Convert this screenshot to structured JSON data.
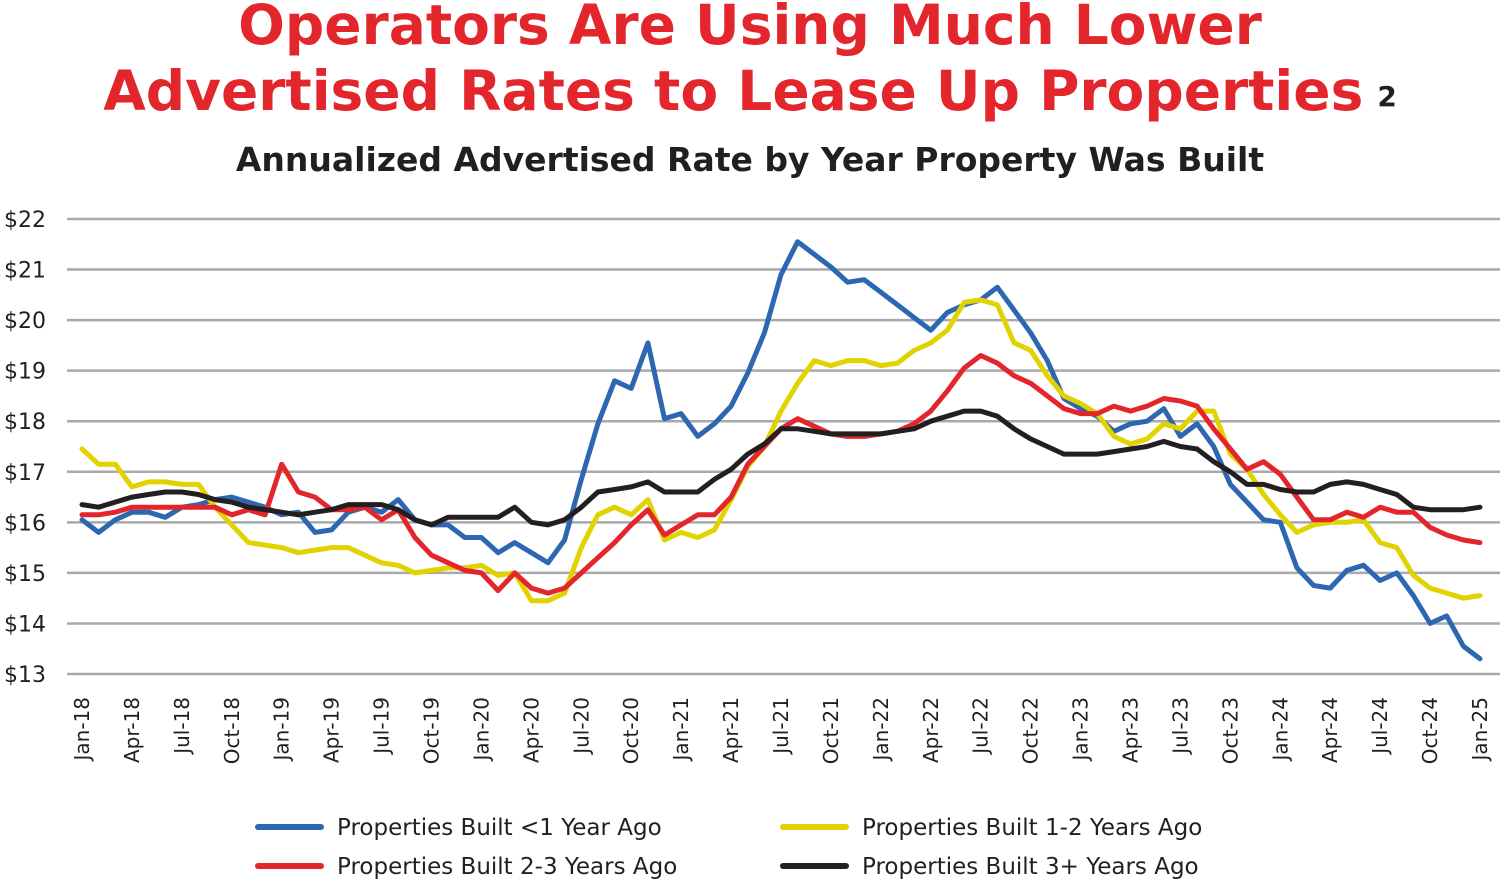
{
  "header": {
    "title_line1": "Operators Are Using Much Lower",
    "title_line2": "Advertised Rates to Lease Up Properties",
    "footnote_marker": "2",
    "subtitle": "Annualized Advertised Rate by Year Property Was Built"
  },
  "chart_data": {
    "type": "line",
    "title": "Annualized Advertised Rate by Year Property Was Built",
    "xlabel": "",
    "ylabel": "",
    "ylim": [
      13,
      22
    ],
    "y_ticks": [
      "$22",
      "$21",
      "$20",
      "$19",
      "$18",
      "$17",
      "$16",
      "$15",
      "$14",
      "$13"
    ],
    "y_tick_values": [
      22,
      21,
      20,
      19,
      18,
      17,
      16,
      15,
      14,
      13
    ],
    "grid": true,
    "legend_position": "bottom",
    "x_start": "Jan-18",
    "x_end": "Jan-25",
    "x_frequency": "monthly",
    "x_tick_labels": [
      "Jan-18",
      "Apr-18",
      "Jul-18",
      "Oct-18",
      "Jan-19",
      "Apr-19",
      "Jul-19",
      "Oct-19",
      "Jan-20",
      "Apr-20",
      "Jul-20",
      "Oct-20",
      "Jan-21",
      "Apr-21",
      "Jul-21",
      "Oct-21",
      "Jan-22",
      "Apr-22",
      "Jul-22",
      "Oct-22",
      "Jan-23",
      "Apr-23",
      "Jul-23",
      "Oct-23",
      "Jan-24",
      "Apr-24",
      "Jul-24",
      "Oct-24",
      "Jan-25"
    ],
    "series": [
      {
        "name": "Properties Built <1 Year Ago",
        "color": "#2e67b1",
        "values": [
          16.05,
          15.8,
          16.05,
          16.2,
          16.2,
          16.1,
          16.3,
          16.35,
          16.45,
          16.5,
          16.4,
          16.3,
          16.15,
          16.2,
          15.8,
          15.85,
          16.2,
          16.3,
          16.2,
          16.45,
          16.05,
          15.95,
          15.95,
          15.7,
          15.7,
          15.4,
          15.6,
          15.4,
          15.2,
          15.65,
          16.85,
          17.95,
          18.8,
          18.65,
          19.55,
          18.05,
          18.15,
          17.7,
          17.95,
          18.3,
          18.95,
          19.75,
          20.9,
          21.55,
          21.3,
          21.05,
          20.75,
          20.8,
          20.55,
          20.3,
          20.05,
          19.8,
          20.15,
          20.3,
          20.4,
          20.65,
          20.2,
          19.75,
          19.2,
          18.45,
          18.25,
          18.1,
          17.8,
          17.95,
          18.0,
          18.25,
          17.7,
          17.95,
          17.5,
          16.75,
          16.4,
          16.05,
          16.0,
          15.1,
          14.75,
          14.7,
          15.05,
          15.15,
          14.85,
          15.0,
          14.55,
          14.0,
          14.15,
          13.55,
          13.3
        ]
      },
      {
        "name": "Properties Built 1-2 Years Ago",
        "color": "#e2d200",
        "values": [
          17.45,
          17.15,
          17.15,
          16.7,
          16.8,
          16.8,
          16.75,
          16.75,
          16.3,
          15.95,
          15.6,
          15.55,
          15.5,
          15.4,
          15.45,
          15.5,
          15.5,
          15.35,
          15.2,
          15.15,
          15.0,
          15.05,
          15.1,
          15.1,
          15.15,
          14.95,
          15.0,
          14.45,
          14.45,
          14.6,
          15.5,
          16.15,
          16.3,
          16.15,
          16.45,
          15.65,
          15.8,
          15.7,
          15.85,
          16.45,
          17.1,
          17.5,
          18.2,
          18.75,
          19.2,
          19.1,
          19.2,
          19.2,
          19.1,
          19.15,
          19.4,
          19.55,
          19.8,
          20.35,
          20.4,
          20.3,
          19.55,
          19.4,
          18.9,
          18.5,
          18.35,
          18.15,
          17.7,
          17.55,
          17.65,
          17.95,
          17.85,
          18.2,
          18.2,
          17.35,
          17.05,
          16.55,
          16.15,
          15.8,
          15.95,
          16.0,
          16.0,
          16.05,
          15.6,
          15.5,
          14.95,
          14.7,
          14.6,
          14.5,
          14.55
        ]
      },
      {
        "name": "Properties Built 2-3 Years Ago",
        "color": "#e3262b",
        "values": [
          16.15,
          16.15,
          16.2,
          16.3,
          16.3,
          16.3,
          16.3,
          16.3,
          16.3,
          16.15,
          16.25,
          16.15,
          17.15,
          16.6,
          16.5,
          16.25,
          16.25,
          16.3,
          16.05,
          16.25,
          15.7,
          15.35,
          15.2,
          15.05,
          15.0,
          14.65,
          15.0,
          14.7,
          14.6,
          14.7,
          15.0,
          15.3,
          15.6,
          15.95,
          16.25,
          15.75,
          15.95,
          16.15,
          16.15,
          16.5,
          17.15,
          17.5,
          17.85,
          18.05,
          17.9,
          17.75,
          17.7,
          17.7,
          17.75,
          17.8,
          17.95,
          18.2,
          18.6,
          19.05,
          19.3,
          19.15,
          18.9,
          18.75,
          18.5,
          18.25,
          18.15,
          18.15,
          18.3,
          18.2,
          18.3,
          18.45,
          18.4,
          18.3,
          17.85,
          17.45,
          17.05,
          17.2,
          16.95,
          16.5,
          16.05,
          16.05,
          16.2,
          16.1,
          16.3,
          16.2,
          16.2,
          15.9,
          15.75,
          15.65,
          15.6
        ]
      },
      {
        "name": "Properties Built 3+ Years Ago",
        "color": "#231f20",
        "values": [
          16.35,
          16.3,
          16.4,
          16.5,
          16.55,
          16.6,
          16.6,
          16.55,
          16.45,
          16.4,
          16.3,
          16.25,
          16.2,
          16.15,
          16.2,
          16.25,
          16.35,
          16.35,
          16.35,
          16.25,
          16.05,
          15.95,
          16.1,
          16.1,
          16.1,
          16.1,
          16.3,
          16.0,
          15.95,
          16.05,
          16.3,
          16.6,
          16.65,
          16.7,
          16.8,
          16.6,
          16.6,
          16.6,
          16.85,
          17.05,
          17.35,
          17.55,
          17.85,
          17.85,
          17.8,
          17.75,
          17.75,
          17.75,
          17.75,
          17.8,
          17.85,
          18.0,
          18.1,
          18.2,
          18.2,
          18.1,
          17.85,
          17.65,
          17.5,
          17.35,
          17.35,
          17.35,
          17.4,
          17.45,
          17.5,
          17.6,
          17.5,
          17.45,
          17.2,
          17.0,
          16.75,
          16.75,
          16.65,
          16.6,
          16.6,
          16.75,
          16.8,
          16.75,
          16.65,
          16.55,
          16.3,
          16.25,
          16.25,
          16.25,
          16.3
        ]
      }
    ]
  }
}
